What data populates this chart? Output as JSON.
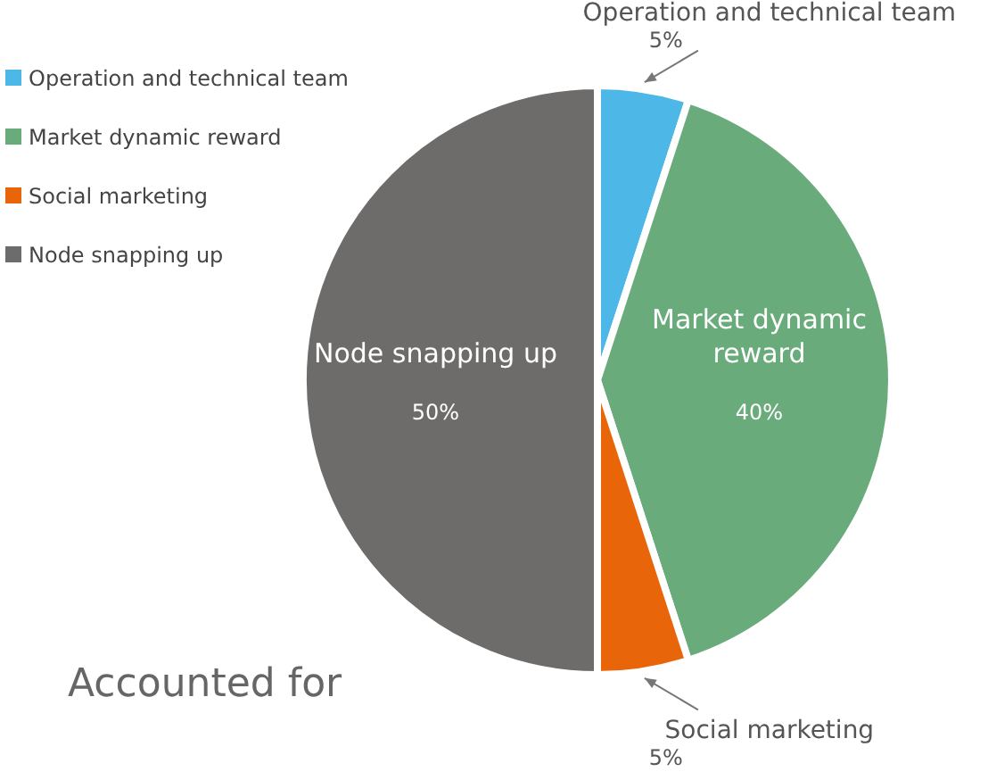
{
  "chart_data": {
    "type": "pie",
    "title": "Accounted for",
    "categories": [
      "Operation and technical team",
      "Market dynamic reward",
      "Social marketing",
      "Node snapping up"
    ],
    "values": [
      5,
      40,
      5,
      50
    ],
    "colors": [
      "#4db8e8",
      "#6aab7c",
      "#e8650a",
      "#6e6b6b"
    ],
    "value_labels": [
      "5%",
      "40%",
      "5%",
      "50%"
    ],
    "legend": "top left"
  }
}
